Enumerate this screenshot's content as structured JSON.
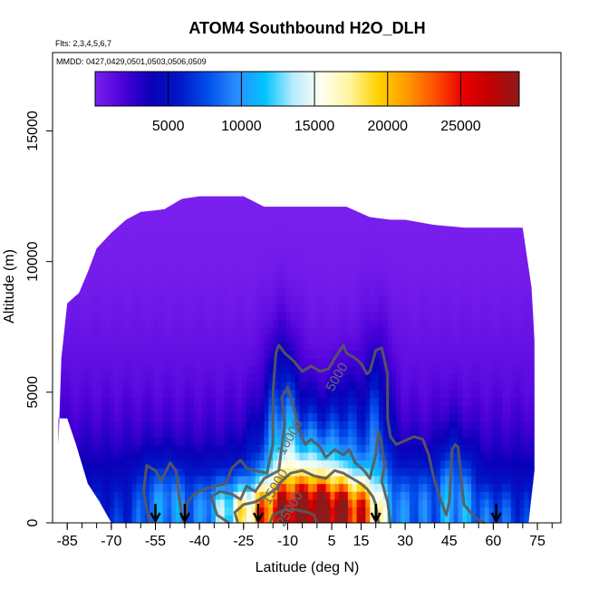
{
  "chart_data": {
    "type": "heatmap",
    "title": "ATOM4 Southbound H2O_DLH",
    "flights_text": "Flts: 2,3,4,5,6,7",
    "dates_text": "MMDD: 0427,0429,0501,0503,0506,0509",
    "xlabel": "Latitude (deg N)",
    "ylabel": "Altitude (m)",
    "xlim": [
      -90,
      83
    ],
    "ylim": [
      0,
      18000
    ],
    "x_ticks": [
      -85,
      -70,
      -55,
      -40,
      -25,
      -10,
      5,
      15,
      30,
      45,
      60,
      75
    ],
    "x_tick_labels": [
      "-85",
      "-70",
      "-55",
      "-40",
      "-25",
      "-10",
      "5",
      "15",
      "30",
      "45",
      "60",
      "75"
    ],
    "y_ticks": [
      0,
      5000,
      10000,
      15000
    ],
    "y_tick_labels": [
      "0",
      "5000",
      "10000",
      "15000"
    ],
    "colorbar": {
      "range": [
        0,
        29000
      ],
      "ticks": [
        5000,
        10000,
        15000,
        20000,
        25000
      ],
      "tick_labels": [
        "5000",
        "10000",
        "15000",
        "20000",
        "25000"
      ],
      "colors": [
        "#7b20ee",
        "#4a00d8",
        "#0a00b8",
        "#0018c8",
        "#0050ec",
        "#2a8cff",
        "#00c4ff",
        "#b8ecff",
        "#fffff0",
        "#fff5a0",
        "#ffd200",
        "#ff9c00",
        "#ff5000",
        "#e80000",
        "#c00000",
        "#8c1a1a"
      ]
    },
    "top_profile": [
      [
        -88,
        3000
      ],
      [
        -87,
        6300
      ],
      [
        -85,
        8400
      ],
      [
        -81,
        8800
      ],
      [
        -78,
        9600
      ],
      [
        -75,
        10500
      ],
      [
        -70,
        11100
      ],
      [
        -65,
        11600
      ],
      [
        -60,
        11900
      ],
      [
        -52,
        12000
      ],
      [
        -46,
        12400
      ],
      [
        -40,
        12500
      ],
      [
        -25,
        12500
      ],
      [
        -18,
        12100
      ],
      [
        -10,
        12100
      ],
      [
        10,
        12100
      ],
      [
        18,
        11700
      ],
      [
        25,
        11600
      ],
      [
        30,
        11600
      ],
      [
        40,
        11400
      ],
      [
        50,
        11300
      ],
      [
        60,
        11300
      ],
      [
        70,
        11300
      ],
      [
        73,
        9000
      ],
      [
        74,
        7000
      ],
      [
        74,
        2000
      ],
      [
        72,
        0
      ]
    ],
    "bottom_profile": [
      [
        72,
        0
      ],
      [
        -70,
        0
      ],
      [
        -74,
        800
      ],
      [
        -78,
        1500
      ],
      [
        -82,
        3000
      ],
      [
        -85,
        4000
      ],
      [
        -88,
        4000
      ]
    ],
    "field_blobs": [
      {
        "x": -10,
        "y": 200,
        "sx": 12,
        "sy": 1000,
        "a": 14000
      },
      {
        "x": 5,
        "y": 200,
        "sx": 10,
        "sy": 1100,
        "a": 12000
      },
      {
        "x": 15,
        "y": 400,
        "sx": 6,
        "sy": 900,
        "a": 7000
      },
      {
        "x": -2,
        "y": 2000,
        "sx": 12,
        "sy": 1800,
        "a": 8000
      },
      {
        "x": -12,
        "y": 4000,
        "sx": 4,
        "sy": 2300,
        "a": 5000
      },
      {
        "x": 20,
        "y": 3600,
        "sx": 3.5,
        "sy": 2400,
        "a": 4500
      },
      {
        "x": 10,
        "y": 4200,
        "sx": 3,
        "sy": 1500,
        "a": 2000
      },
      {
        "x": -25,
        "y": 600,
        "sx": 7,
        "sy": 600,
        "a": 3500
      },
      {
        "x": 45,
        "y": 1200,
        "sx": 2.5,
        "sy": 1700,
        "a": 4200
      },
      {
        "x": 51,
        "y": 1000,
        "sx": 2.5,
        "sy": 1400,
        "a": 3500
      },
      {
        "x": -55,
        "y": 900,
        "sx": 5,
        "sy": 1200,
        "a": 3000
      },
      {
        "x": -48,
        "y": 900,
        "sx": 4,
        "sy": 1000,
        "a": 2500
      },
      {
        "x": -35,
        "y": 800,
        "sx": 6,
        "sy": 1000,
        "a": 2500
      },
      {
        "x": 35,
        "y": 1000,
        "sx": 6,
        "sy": 1100,
        "a": 2800
      },
      {
        "x": 60,
        "y": 400,
        "sx": 6,
        "sy": 800,
        "a": 2000
      }
    ],
    "field_base": [
      {
        "y": 0,
        "v": 6500
      },
      {
        "y": 1000,
        "v": 5600
      },
      {
        "y": 2000,
        "v": 4200
      },
      {
        "y": 3000,
        "v": 3000
      },
      {
        "y": 4000,
        "v": 2100
      },
      {
        "y": 5000,
        "v": 1500
      },
      {
        "y": 6000,
        "v": 1100
      },
      {
        "y": 7000,
        "v": 800
      },
      {
        "y": 8000,
        "v": 550
      },
      {
        "y": 9000,
        "v": 350
      },
      {
        "y": 10000,
        "v": 200
      },
      {
        "y": 12000,
        "v": 60
      }
    ],
    "contours": [
      {
        "level": 5000,
        "label": "5000",
        "label_at": [
          8,
          5500
        ],
        "points": [
          [
            -57,
            0
          ],
          [
            -59,
            1200
          ],
          [
            -58,
            2200
          ],
          [
            -55,
            2000
          ],
          [
            -53,
            1600
          ],
          [
            -50,
            2300
          ],
          [
            -48,
            2000
          ],
          [
            -47,
            1100
          ],
          [
            -46,
            200
          ],
          [
            -45,
            0
          ],
          [
            -44,
            800
          ],
          [
            -42,
            1100
          ],
          [
            -38,
            1300
          ],
          [
            -35,
            1400
          ],
          [
            -31,
            1500
          ],
          [
            -29,
            2100
          ],
          [
            -26,
            2400
          ],
          [
            -24,
            2100
          ],
          [
            -21,
            2000
          ],
          [
            -17,
            1900
          ],
          [
            -15,
            3000
          ],
          [
            -15,
            5000
          ],
          [
            -14,
            6500
          ],
          [
            -13,
            6800
          ],
          [
            -11,
            6500
          ],
          [
            -8,
            6200
          ],
          [
            -5,
            5800
          ],
          [
            -2,
            6000
          ],
          [
            1,
            5800
          ],
          [
            4,
            5900
          ],
          [
            6,
            6300
          ],
          [
            9,
            6800
          ],
          [
            10,
            6500
          ],
          [
            13,
            6300
          ],
          [
            15,
            6100
          ],
          [
            17,
            5700
          ],
          [
            18,
            5800
          ],
          [
            20,
            6600
          ],
          [
            22,
            6700
          ],
          [
            24,
            5700
          ],
          [
            24,
            4000
          ],
          [
            25,
            3300
          ],
          [
            27,
            3000
          ],
          [
            29,
            3100
          ],
          [
            33,
            3300
          ],
          [
            36,
            3200
          ],
          [
            38,
            2600
          ],
          [
            40,
            1600
          ],
          [
            42,
            900
          ],
          [
            44,
            300
          ],
          [
            45,
            800
          ],
          [
            46,
            2800
          ],
          [
            47,
            3000
          ],
          [
            48,
            2900
          ],
          [
            49,
            1800
          ],
          [
            50,
            700
          ],
          [
            53,
            300
          ],
          [
            55,
            100
          ],
          [
            57,
            0
          ]
        ]
      },
      {
        "level": 10000,
        "label": "10000",
        "label_at": [
          -8,
          3200
        ],
        "points": [
          [
            -30,
            0
          ],
          [
            -34,
            300
          ],
          [
            -36,
            1000
          ],
          [
            -33,
            1200
          ],
          [
            -29,
            1100
          ],
          [
            -26,
            900
          ],
          [
            -24,
            1400
          ],
          [
            -21,
            1200
          ],
          [
            -18,
            1700
          ],
          [
            -13,
            2000
          ],
          [
            -11,
            3800
          ],
          [
            -12,
            4800
          ],
          [
            -10,
            5200
          ],
          [
            -8,
            4500
          ],
          [
            -6,
            3500
          ],
          [
            -4,
            3000
          ],
          [
            -2,
            3200
          ],
          [
            1,
            2900
          ],
          [
            3,
            2500
          ],
          [
            6,
            2800
          ],
          [
            9,
            2600
          ],
          [
            11,
            2800
          ],
          [
            13,
            2300
          ],
          [
            16,
            2000
          ],
          [
            18,
            1700
          ],
          [
            20,
            2600
          ],
          [
            21,
            3500
          ],
          [
            22,
            3000
          ],
          [
            23,
            2200
          ],
          [
            22,
            1600
          ],
          [
            24,
            800
          ],
          [
            25,
            0
          ]
        ]
      },
      {
        "level": 15000,
        "label": "15000",
        "label_at": [
          -13,
          1300
        ],
        "points": [
          [
            -27,
            0
          ],
          [
            -28,
            400
          ],
          [
            -25,
            700
          ],
          [
            -21,
            800
          ],
          [
            -18,
            1000
          ],
          [
            -14,
            1300
          ],
          [
            -12,
            1600
          ],
          [
            -9,
            1900
          ],
          [
            -5,
            2000
          ],
          [
            -1,
            1800
          ],
          [
            3,
            1700
          ],
          [
            6,
            2000
          ],
          [
            9,
            1900
          ],
          [
            12,
            1700
          ],
          [
            15,
            1500
          ],
          [
            17,
            1300
          ],
          [
            19,
            1000
          ],
          [
            20,
            700
          ],
          [
            21,
            0
          ]
        ]
      },
      {
        "level": 25000,
        "label": "25000",
        "label_at": [
          -8,
          450
        ],
        "points": [
          [
            -16,
            0
          ],
          [
            -15,
            300
          ],
          [
            -11,
            500
          ],
          [
            -7,
            500
          ],
          [
            -3,
            400
          ],
          [
            -1,
            300
          ],
          [
            0,
            0
          ]
        ]
      }
    ],
    "flight_markers": [
      -55,
      -45,
      -20,
      20,
      61
    ]
  }
}
